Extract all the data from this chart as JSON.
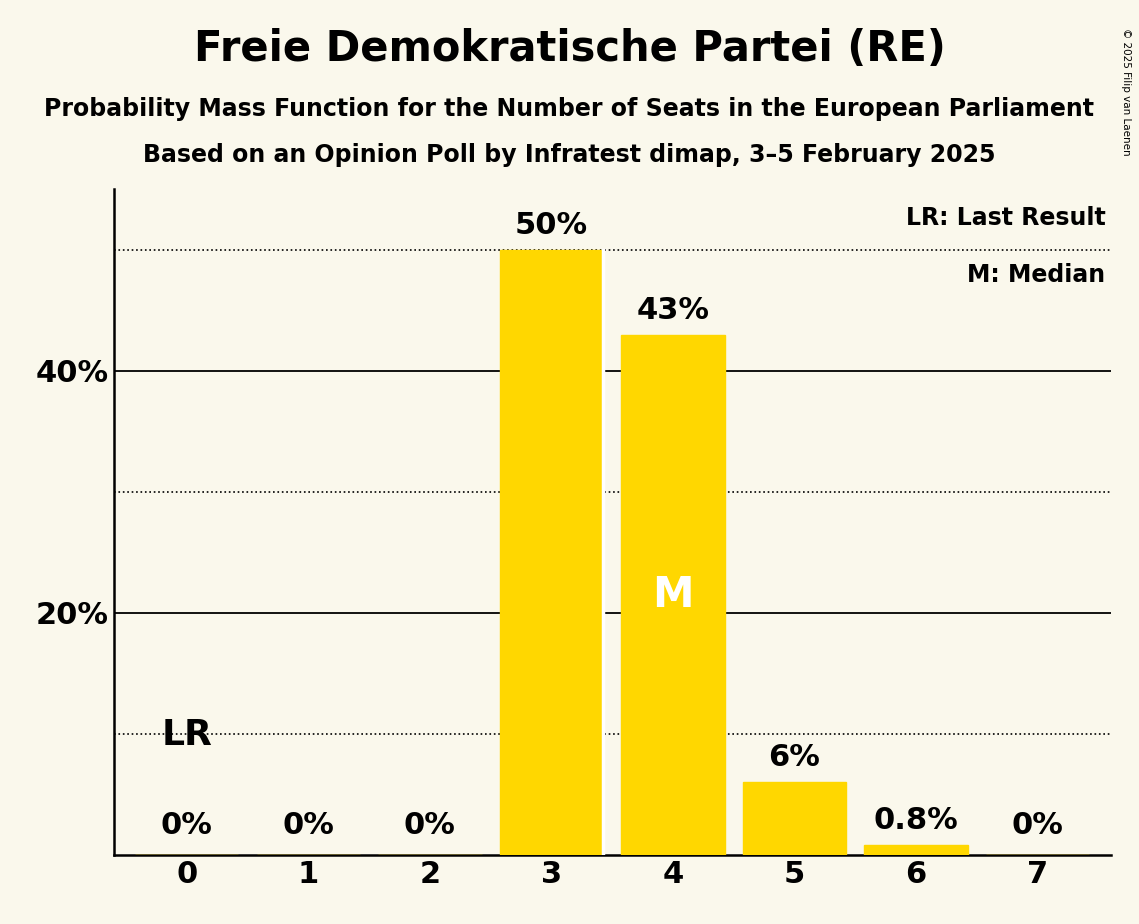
{
  "title": "Freie Demokratische Partei (RE)",
  "subtitle1": "Probability Mass Function for the Number of Seats in the European Parliament",
  "subtitle2": "Based on an Opinion Poll by Infratest dimap, 3–5 February 2025",
  "copyright": "© 2025 Filip van Laenen",
  "categories": [
    0,
    1,
    2,
    3,
    4,
    5,
    6,
    7
  ],
  "values": [
    0.0,
    0.0,
    0.0,
    50.0,
    43.0,
    6.0,
    0.8,
    0.0
  ],
  "bar_color": "#FFD700",
  "background_color": "#FAF8EC",
  "ylim": [
    0,
    55
  ],
  "yticks_labeled": [
    20,
    40
  ],
  "yticks_all": [
    0,
    10,
    20,
    30,
    40,
    50
  ],
  "solid_gridlines": [
    20,
    40
  ],
  "dotted_gridlines": [
    10,
    30,
    50
  ],
  "legend_lr": "LR: Last Result",
  "legend_m": "M: Median",
  "bar_labels": [
    "0%",
    "0%",
    "0%",
    "50%",
    "43%",
    "6%",
    "0.8%",
    "0%"
  ],
  "title_fontsize": 30,
  "subtitle_fontsize": 17,
  "axis_fontsize": 22,
  "bar_label_fontsize": 22,
  "legend_fontsize": 17,
  "annotation_fontsize": 26,
  "median_bar_idx": 4,
  "lr_bar_idx": 0
}
